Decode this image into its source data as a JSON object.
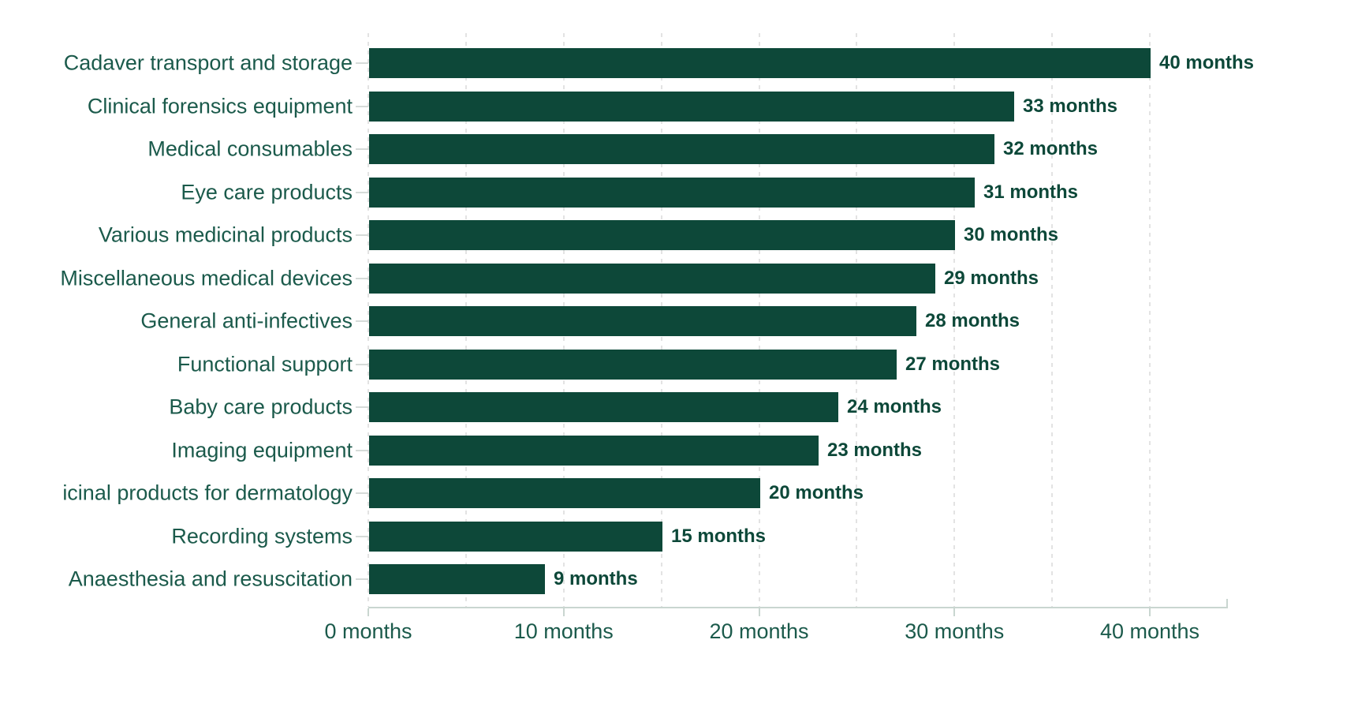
{
  "chart_data": {
    "type": "bar",
    "orientation": "horizontal",
    "title": "",
    "xlabel": "",
    "ylabel": "",
    "unit": "months",
    "categories": [
      "Cadaver transport and storage",
      "Clinical forensics equipment",
      "Medical consumables",
      "Eye care products",
      "Various medicinal products",
      "Miscellaneous medical devices",
      "General anti-infectives",
      "Functional support",
      "Baby care products",
      "Imaging equipment",
      "icinal products for dermatology",
      "Recording systems",
      "Anaesthesia and resuscitation"
    ],
    "values": [
      40,
      33,
      32,
      31,
      30,
      29,
      28,
      27,
      24,
      23,
      20,
      15,
      9
    ],
    "value_labels": [
      "40 months",
      "33 months",
      "32 months",
      "31 months",
      "30 months",
      "29 months",
      "28 months",
      "27 months",
      "24 months",
      "23 months",
      "20 months",
      "15 months",
      "9 months"
    ],
    "x_axis": {
      "tick_values": [
        0,
        10,
        20,
        30,
        40
      ],
      "tick_labels": [
        "0 months",
        "10 months",
        "20 months",
        "30 months",
        "40 months"
      ],
      "minor_gridline_step_months": 5,
      "range_months": [
        0,
        44
      ]
    },
    "grid": "vertical dashed minor gridlines every 5 months",
    "legend": "none",
    "colors": {
      "bar": "#0d4839",
      "value_text": "#0d4839",
      "category_text": "#1b5a4b",
      "axis_text": "#1b5a4b",
      "gridline": "#e3e3e3",
      "axis_line": "#c9d6d0",
      "label_tick": "#d6dbd9"
    }
  }
}
